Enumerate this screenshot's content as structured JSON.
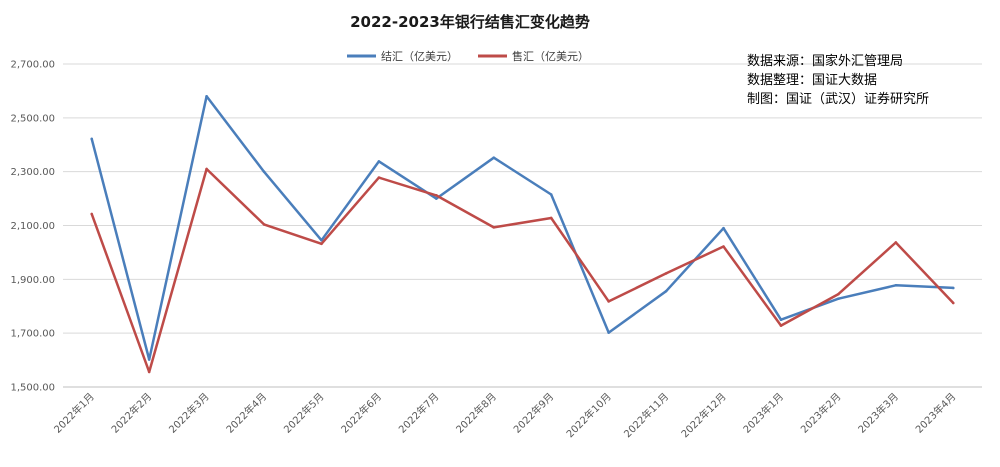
{
  "chart_data": {
    "type": "line",
    "title": "2022-2023年银行结售汇变化趋势",
    "xlabel": "",
    "ylabel": "",
    "ylim": [
      1500,
      2700
    ],
    "yticks": [
      "1,500.00",
      "1,700.00",
      "1,900.00",
      "2,100.00",
      "2,300.00",
      "2,500.00",
      "2,700.00"
    ],
    "grid": true,
    "legend_position": "top",
    "categories": [
      "2022年1月",
      "2022年2月",
      "2022年3月",
      "2022年4月",
      "2022年5月",
      "2022年6月",
      "2022年7月",
      "2022年8月",
      "2022年9月",
      "2022年10月",
      "2022年11月",
      "2022年12月",
      "2023年1月",
      "2023年2月",
      "2023年3月",
      "2023年4月"
    ],
    "series": [
      {
        "name": "结汇（亿美元）",
        "color": "#4a7ebb",
        "values": [
          2422,
          1602,
          2580,
          2300,
          2045,
          2338,
          2200,
          2352,
          2215,
          1702,
          1856,
          2090,
          1750,
          1828,
          1878,
          1868
        ]
      },
      {
        "name": "售汇（亿美元）",
        "color": "#be4b48",
        "values": [
          2143,
          1556,
          2310,
          2104,
          2032,
          2278,
          2212,
          2093,
          2128,
          1818,
          1922,
          2022,
          1728,
          1845,
          2037,
          1812
        ]
      }
    ]
  },
  "notes": [
    "数据来源：国家外汇管理局",
    "数据整理：国证大数据",
    "制图：国证（武汉）证券研究所"
  ]
}
